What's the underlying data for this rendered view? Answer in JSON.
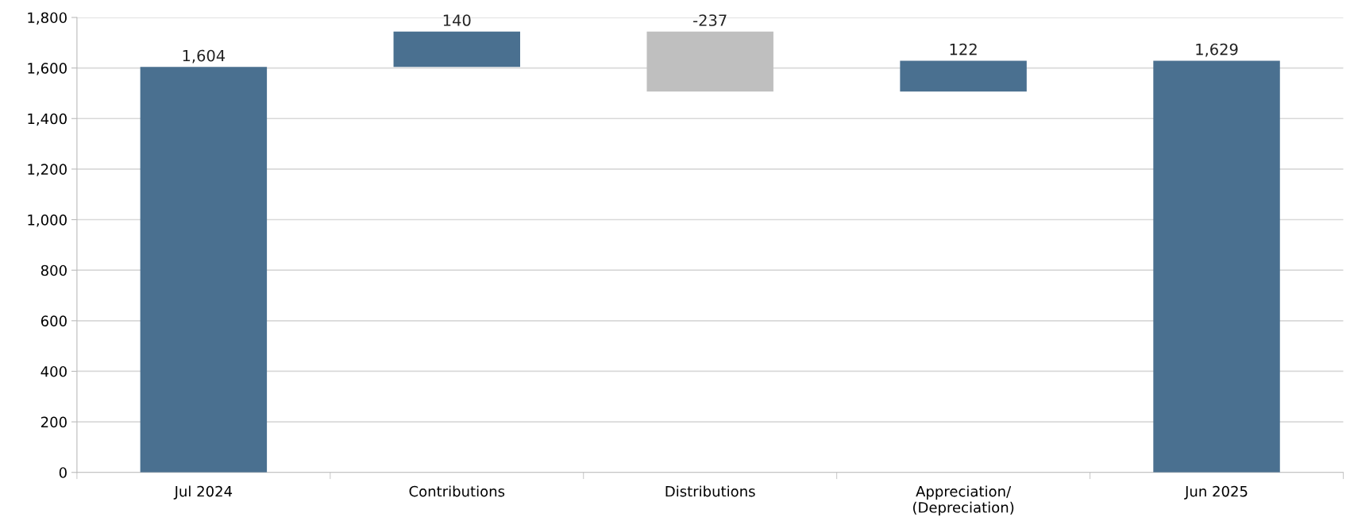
{
  "chart_data": {
    "type": "bar",
    "categories": [
      "Jul 2024",
      "Contributions",
      "Distributions",
      "Appreciation/\n(Depreciation)",
      "Jun 2025"
    ],
    "values": [
      1604,
      140,
      -237,
      122,
      1629
    ],
    "base": [
      0,
      1604,
      1744,
      1507,
      0
    ],
    "colors": [
      "#4a7090",
      "#4a7090",
      "#bfbfbf",
      "#4a7090",
      "#4a7090"
    ],
    "value_labels": [
      "1,604",
      "140",
      "-237",
      "122",
      "1,629"
    ],
    "ylim": [
      0,
      1800
    ],
    "yticks": [
      0,
      {
        "value": 200,
        "label": "200"
      },
      {
        "value": 400,
        "label": "400"
      },
      {
        "value": 600,
        "label": "600"
      },
      {
        "value": 800,
        "label": "800"
      },
      {
        "value": 1000,
        "label": "1,000"
      },
      {
        "value": 1200,
        "label": "1,200"
      },
      {
        "value": 1400,
        "label": "1,400"
      },
      {
        "value": 1600,
        "label": "1,600"
      },
      {
        "value": 1800,
        "label": "1,800"
      }
    ],
    "grid": "y"
  }
}
